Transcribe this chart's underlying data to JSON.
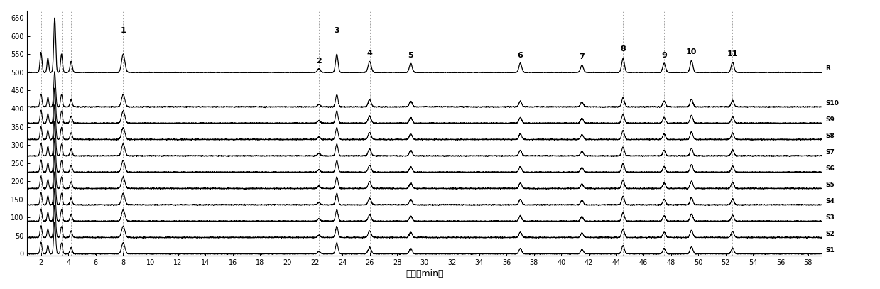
{
  "title": "",
  "xlabel": "时间（min）",
  "ylabel": "",
  "xlim": [
    1,
    59
  ],
  "ylim": [
    -5,
    670
  ],
  "yticks": [
    0,
    50,
    100,
    150,
    200,
    250,
    300,
    350,
    400,
    450,
    500,
    550,
    600,
    650
  ],
  "xticks": [
    2,
    4,
    6,
    8,
    10,
    12,
    14,
    16,
    18,
    20,
    22,
    24,
    26,
    28,
    30,
    32,
    34,
    36,
    38,
    40,
    42,
    44,
    46,
    48,
    50,
    52,
    54,
    56,
    58
  ],
  "trace_labels": [
    "S1",
    "S2",
    "S3",
    "S4",
    "S5",
    "S6",
    "S7",
    "S8",
    "S9",
    "S10",
    "R"
  ],
  "trace_offsets": [
    0,
    45,
    90,
    135,
    180,
    225,
    270,
    315,
    360,
    405,
    500
  ],
  "peak_positions": [
    2.0,
    2.5,
    3.0,
    3.5,
    4.2,
    8.0,
    22.3,
    23.6,
    26.0,
    29.0,
    37.0,
    41.5,
    44.5,
    47.5,
    49.5,
    52.5
  ],
  "peak_widths": [
    0.07,
    0.06,
    0.07,
    0.07,
    0.08,
    0.12,
    0.1,
    0.09,
    0.11,
    0.1,
    0.1,
    0.1,
    0.1,
    0.1,
    0.1,
    0.1
  ],
  "R_peak_heights": [
    55,
    40,
    150,
    50,
    30,
    50,
    10,
    50,
    30,
    25,
    25,
    20,
    38,
    25,
    32,
    28
  ],
  "S_peak_heights": [
    40,
    30,
    110,
    38,
    22,
    38,
    8,
    38,
    22,
    18,
    18,
    15,
    28,
    18,
    24,
    20
  ],
  "labeled_peaks": {
    "1": 8.0,
    "2": 22.3,
    "3": 23.6,
    "4": 26.0,
    "5": 29.0,
    "6": 37.0,
    "7": 41.5,
    "8": 44.5,
    "9": 47.5,
    "10": 49.5,
    "11": 52.5
  },
  "dashed_positions": [
    2.0,
    2.5,
    3.0,
    3.5,
    4.2,
    8.0,
    22.3,
    23.6,
    26.0,
    29.0,
    37.0,
    41.5,
    44.5,
    47.5,
    49.5,
    52.5
  ],
  "noise_level": 0.6,
  "background_color": "#ffffff",
  "trace_color": "#000000",
  "figsize": [
    12.39,
    4.07
  ],
  "dpi": 100
}
